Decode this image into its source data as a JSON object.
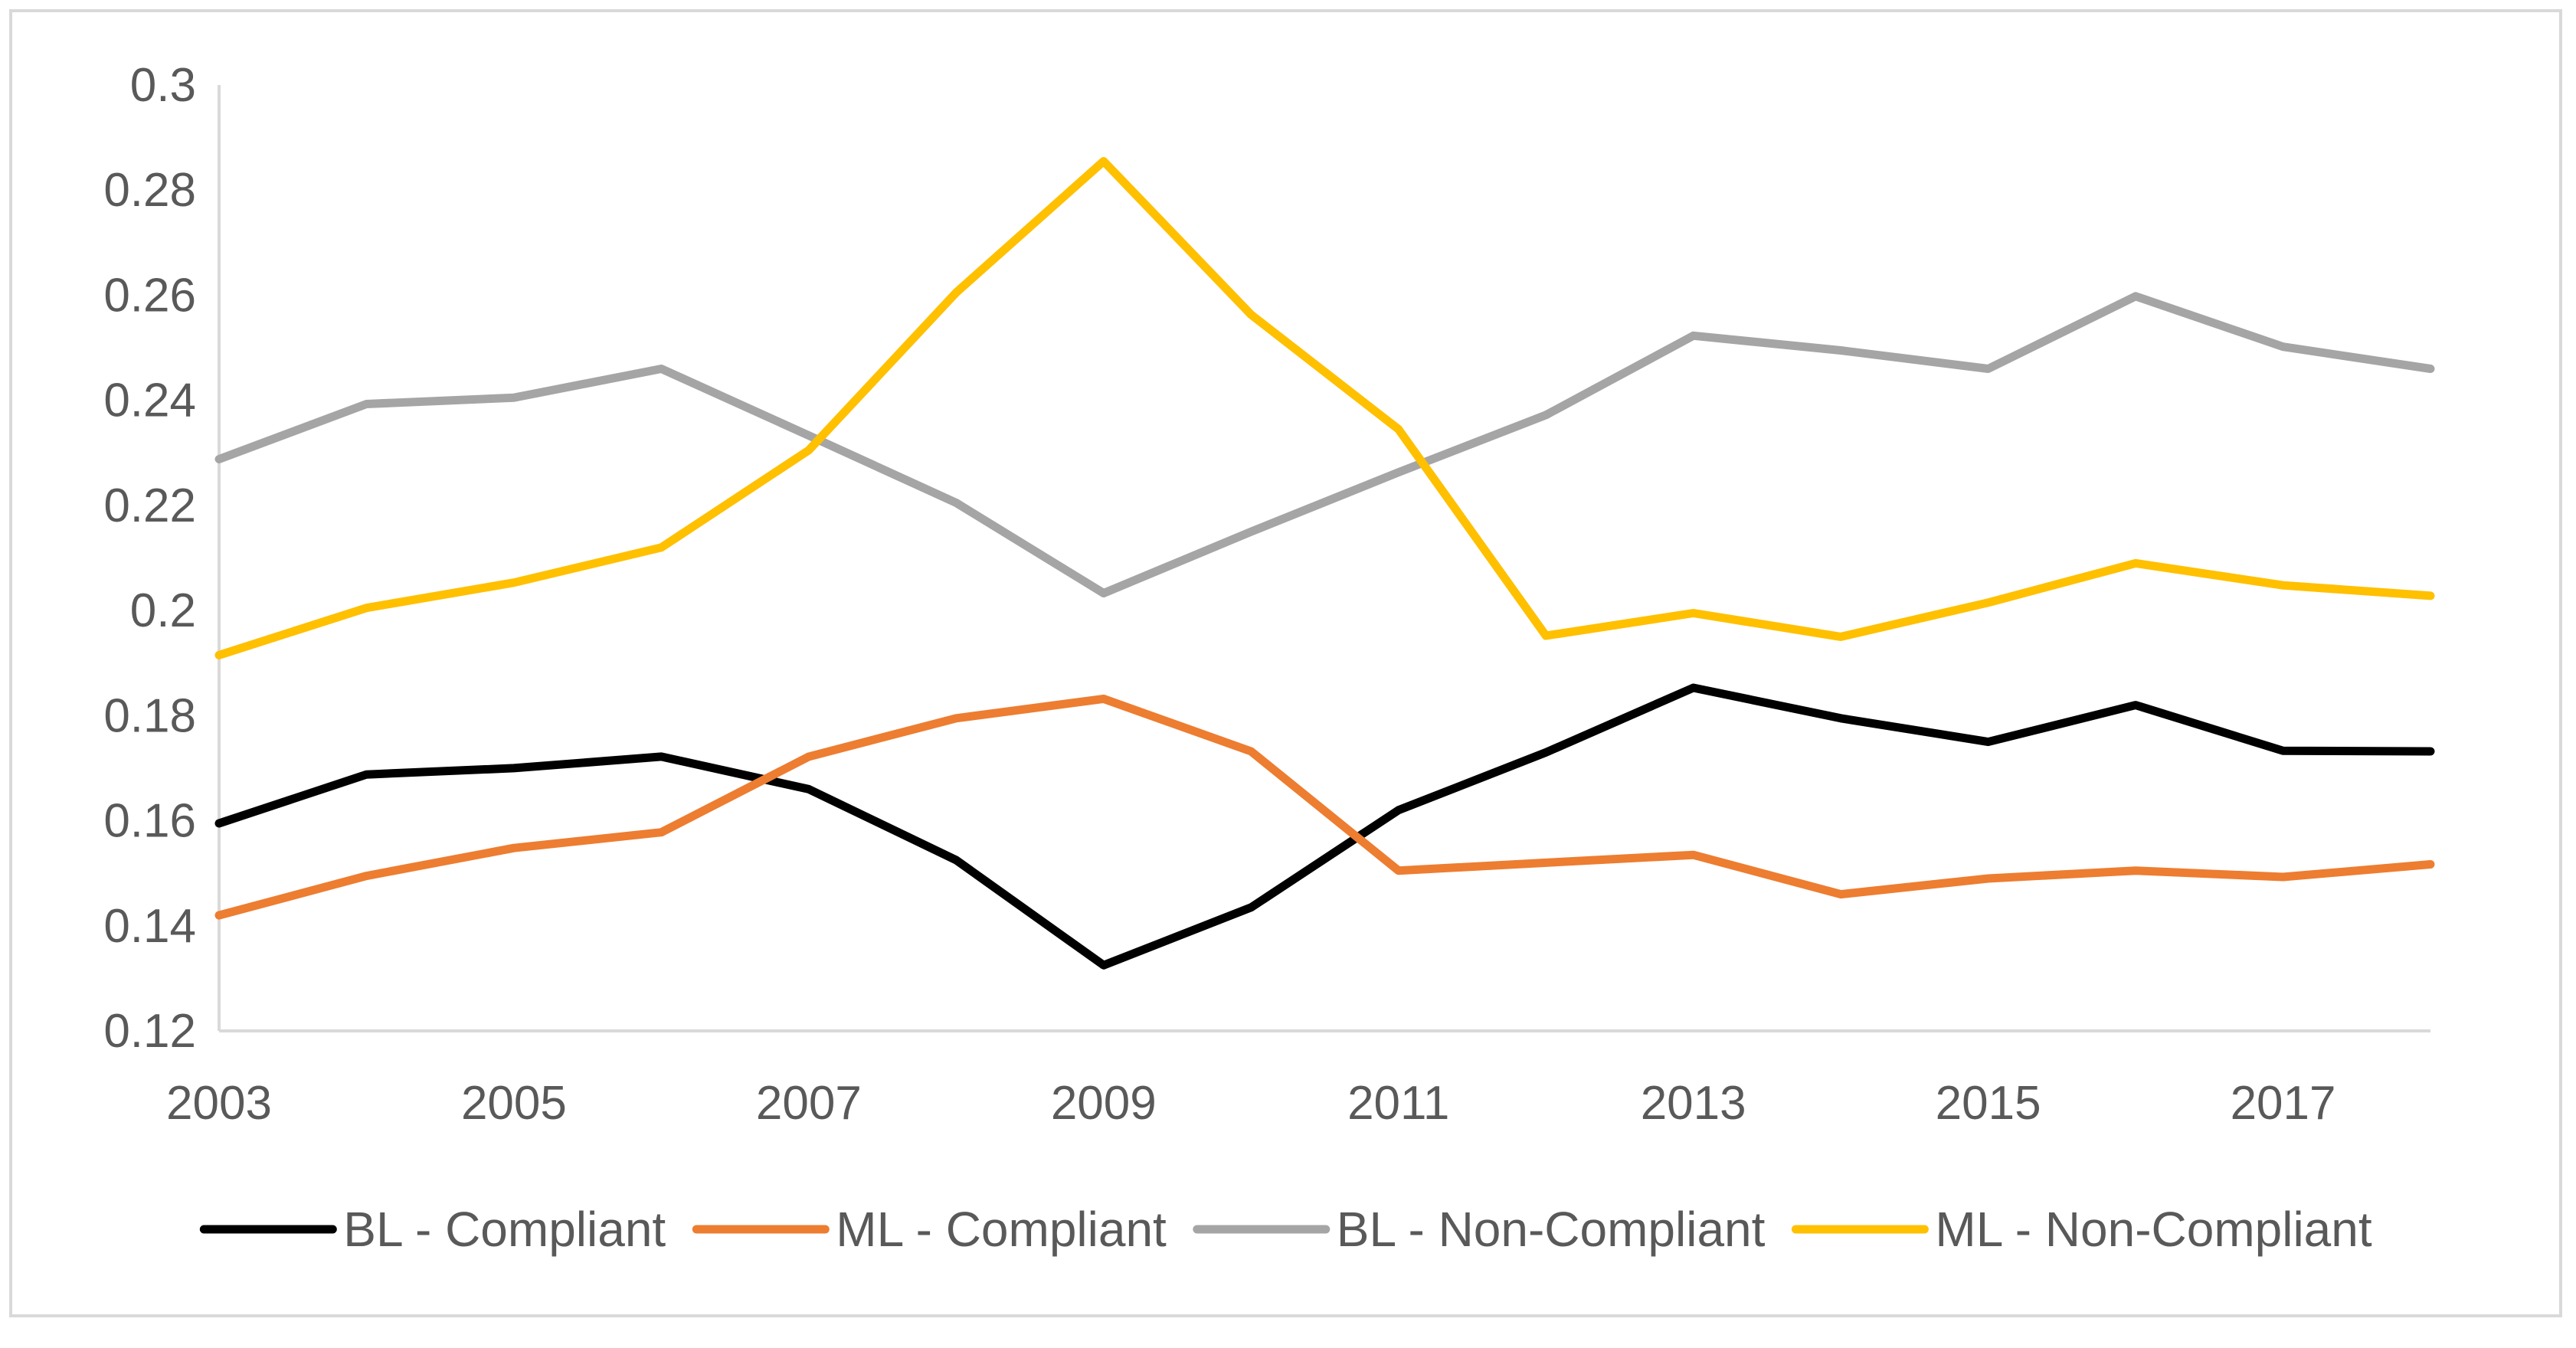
{
  "chart_data": {
    "type": "line",
    "title": "",
    "xlabel": "",
    "ylabel": "",
    "x": [
      2003,
      2004,
      2005,
      2006,
      2007,
      2008,
      2009,
      2010,
      2011,
      2012,
      2013,
      2014,
      2015,
      2016,
      2017,
      2018
    ],
    "xlim": [
      2003,
      2018
    ],
    "ylim": [
      0.12,
      0.3
    ],
    "x_tick_labels": [
      "2003",
      "2005",
      "2007",
      "2009",
      "2011",
      "2013",
      "2015",
      "2017"
    ],
    "y_tick_labels": [
      "0.12",
      "0.14",
      "0.16",
      "0.18",
      "0.2",
      "0.22",
      "0.24",
      "0.26",
      "0.28",
      "0.3"
    ],
    "grid": false,
    "legend_position": "bottom",
    "series": [
      {
        "name": "BL - Compliant",
        "color": "#000000",
        "values": [
          0.1595,
          0.1688,
          0.17,
          0.1722,
          0.166,
          0.1525,
          0.1325,
          0.1435,
          0.162,
          0.173,
          0.1853,
          0.1795,
          0.175,
          0.182,
          0.1733,
          0.1732
        ]
      },
      {
        "name": "ML - Compliant",
        "color": "#ED7D31",
        "values": [
          0.142,
          0.1495,
          0.1548,
          0.1578,
          0.1722,
          0.1795,
          0.1832,
          0.1732,
          0.1505,
          0.152,
          0.1535,
          0.146,
          0.149,
          0.1505,
          0.1493,
          0.1517
        ]
      },
      {
        "name": "BL - Non-Compliant",
        "color": "#A5A5A5",
        "values": [
          0.2288,
          0.2393,
          0.2405,
          0.246,
          0.2333,
          0.2205,
          0.2033,
          0.215,
          0.2263,
          0.2372,
          0.2523,
          0.2495,
          0.246,
          0.2598,
          0.2502,
          0.246
        ]
      },
      {
        "name": "ML - Non-Compliant",
        "color": "#FFC000",
        "values": [
          0.1915,
          0.2005,
          0.2053,
          0.212,
          0.2305,
          0.2605,
          0.2855,
          0.2563,
          0.2345,
          0.1952,
          0.1995,
          0.195,
          0.2015,
          0.209,
          0.2048,
          0.2028
        ]
      }
    ]
  }
}
